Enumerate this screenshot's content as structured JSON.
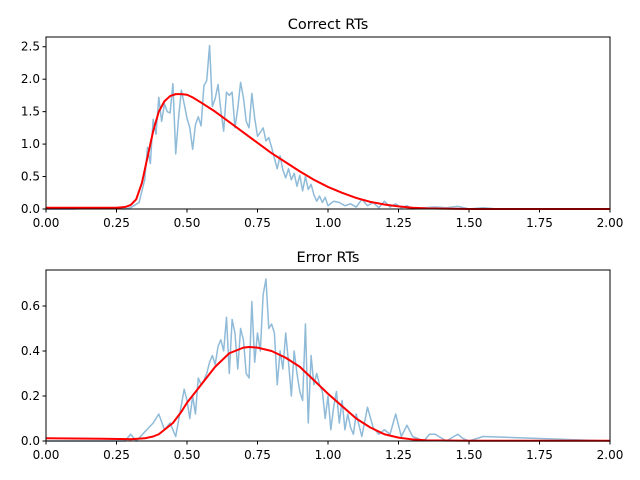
{
  "colors": {
    "histogram": "#1f77b4",
    "model": "#ff0000"
  },
  "chart_data": [
    {
      "type": "line",
      "title": "Correct RTs",
      "xlim": [
        0,
        2
      ],
      "ylim": [
        0,
        2.65
      ],
      "x_ticks": [
        0,
        0.25,
        0.5,
        0.75,
        1.0,
        1.25,
        1.5,
        1.75,
        2.0
      ],
      "x_tick_labels": [
        "0.00",
        "0.25",
        "0.50",
        "0.75",
        "1.00",
        "1.25",
        "1.50",
        "1.75",
        "2.00"
      ],
      "y_ticks": [
        0,
        0.5,
        1.0,
        1.5,
        2.0,
        2.5
      ],
      "y_tick_labels": [
        "0.0",
        "0.5",
        "1.0",
        "1.5",
        "2.0",
        "2.5"
      ],
      "series": [
        {
          "color": "#1f77b4",
          "x": [
            0,
            0.1,
            0.2,
            0.28,
            0.3,
            0.33,
            0.35,
            0.36,
            0.37,
            0.38,
            0.39,
            0.4,
            0.41,
            0.42,
            0.43,
            0.44,
            0.45,
            0.46,
            0.47,
            0.48,
            0.49,
            0.5,
            0.51,
            0.52,
            0.53,
            0.54,
            0.55,
            0.56,
            0.57,
            0.58,
            0.59,
            0.6,
            0.61,
            0.62,
            0.63,
            0.64,
            0.65,
            0.66,
            0.67,
            0.68,
            0.69,
            0.7,
            0.71,
            0.72,
            0.73,
            0.74,
            0.75,
            0.76,
            0.77,
            0.78,
            0.79,
            0.8,
            0.81,
            0.82,
            0.83,
            0.84,
            0.85,
            0.86,
            0.87,
            0.88,
            0.89,
            0.9,
            0.91,
            0.92,
            0.93,
            0.94,
            0.95,
            0.96,
            0.97,
            0.98,
            0.99,
            1.0,
            1.02,
            1.04,
            1.06,
            1.08,
            1.1,
            1.12,
            1.14,
            1.16,
            1.18,
            1.2,
            1.22,
            1.24,
            1.26,
            1.28,
            1.3,
            1.34,
            1.38,
            1.42,
            1.46,
            1.5,
            1.55,
            1.6,
            2.0
          ],
          "values": [
            0,
            0,
            0.02,
            0,
            0.02,
            0.1,
            0.45,
            0.95,
            0.7,
            1.38,
            1.15,
            1.72,
            1.35,
            1.62,
            1.5,
            1.48,
            1.93,
            0.85,
            1.4,
            1.83,
            1.62,
            1.4,
            1.25,
            0.92,
            1.3,
            1.42,
            1.28,
            1.9,
            1.98,
            2.52,
            1.58,
            1.7,
            1.92,
            1.52,
            1.2,
            1.8,
            1.75,
            1.8,
            1.25,
            1.55,
            1.95,
            1.72,
            1.35,
            1.25,
            1.78,
            1.4,
            1.12,
            1.18,
            1.25,
            1.05,
            1.1,
            0.95,
            0.78,
            0.62,
            0.82,
            0.6,
            0.48,
            0.62,
            0.45,
            0.55,
            0.35,
            0.52,
            0.28,
            0.5,
            0.3,
            0.38,
            0.22,
            0.12,
            0.2,
            0.1,
            0.18,
            0.05,
            0.12,
            0.1,
            0.05,
            0.08,
            0.03,
            0.15,
            0.05,
            0.1,
            0.02,
            0.12,
            0.03,
            0.08,
            0.02,
            0.05,
            0,
            0.02,
            0.03,
            0.02,
            0.04,
            0,
            0.02,
            0,
            0
          ]
        },
        {
          "color": "#ff0000",
          "x": [
            0,
            0.25,
            0.28,
            0.3,
            0.32,
            0.34,
            0.36,
            0.38,
            0.4,
            0.42,
            0.44,
            0.46,
            0.48,
            0.5,
            0.52,
            0.55,
            0.6,
            0.65,
            0.7,
            0.75,
            0.8,
            0.85,
            0.9,
            0.95,
            1.0,
            1.05,
            1.1,
            1.15,
            1.2,
            1.25,
            1.3,
            1.35,
            1.4,
            1.5,
            1.6,
            2.0
          ],
          "values": [
            0.02,
            0.02,
            0.03,
            0.06,
            0.15,
            0.4,
            0.8,
            1.2,
            1.5,
            1.66,
            1.74,
            1.77,
            1.77,
            1.76,
            1.72,
            1.64,
            1.5,
            1.34,
            1.18,
            1.02,
            0.86,
            0.72,
            0.58,
            0.45,
            0.34,
            0.25,
            0.17,
            0.11,
            0.07,
            0.04,
            0.02,
            0.01,
            0.005,
            0,
            0,
            0
          ]
        }
      ]
    },
    {
      "type": "line",
      "title": "Error RTs",
      "xlim": [
        0,
        2
      ],
      "ylim": [
        0,
        0.76
      ],
      "x_ticks": [
        0,
        0.25,
        0.5,
        0.75,
        1.0,
        1.25,
        1.5,
        1.75,
        2.0
      ],
      "x_tick_labels": [
        "0.00",
        "0.25",
        "0.50",
        "0.75",
        "1.00",
        "1.25",
        "1.50",
        "1.75",
        "2.00"
      ],
      "y_ticks": [
        0,
        0.2,
        0.4,
        0.6
      ],
      "y_tick_labels": [
        "0.0",
        "0.2",
        "0.4",
        "0.6"
      ],
      "series": [
        {
          "color": "#1f77b4",
          "x": [
            0,
            0.28,
            0.3,
            0.32,
            0.38,
            0.4,
            0.42,
            0.44,
            0.46,
            0.48,
            0.49,
            0.5,
            0.51,
            0.52,
            0.53,
            0.54,
            0.55,
            0.56,
            0.57,
            0.58,
            0.59,
            0.6,
            0.61,
            0.62,
            0.63,
            0.64,
            0.65,
            0.66,
            0.67,
            0.68,
            0.69,
            0.7,
            0.71,
            0.72,
            0.73,
            0.74,
            0.75,
            0.76,
            0.77,
            0.78,
            0.79,
            0.8,
            0.81,
            0.82,
            0.83,
            0.84,
            0.85,
            0.86,
            0.87,
            0.88,
            0.89,
            0.9,
            0.91,
            0.92,
            0.93,
            0.94,
            0.95,
            0.96,
            0.97,
            0.98,
            0.99,
            1.0,
            1.01,
            1.02,
            1.03,
            1.04,
            1.05,
            1.06,
            1.07,
            1.08,
            1.09,
            1.1,
            1.12,
            1.14,
            1.16,
            1.18,
            1.2,
            1.22,
            1.24,
            1.26,
            1.28,
            1.3,
            1.34,
            1.36,
            1.38,
            1.42,
            1.46,
            1.48,
            1.5,
            1.55,
            2.0
          ],
          "values": [
            0,
            0,
            0.03,
            0,
            0.08,
            0.12,
            0.05,
            0.08,
            0.02,
            0.16,
            0.23,
            0.18,
            0.1,
            0.2,
            0.12,
            0.28,
            0.25,
            0.27,
            0.3,
            0.35,
            0.38,
            0.34,
            0.42,
            0.45,
            0.4,
            0.55,
            0.3,
            0.54,
            0.48,
            0.32,
            0.5,
            0.45,
            0.3,
            0.28,
            0.62,
            0.35,
            0.48,
            0.4,
            0.65,
            0.72,
            0.5,
            0.52,
            0.48,
            0.25,
            0.4,
            0.32,
            0.48,
            0.35,
            0.2,
            0.4,
            0.3,
            0.22,
            0.18,
            0.52,
            0.08,
            0.38,
            0.25,
            0.3,
            0.25,
            0.22,
            0.1,
            0.2,
            0.05,
            0.15,
            0.22,
            0.08,
            0.18,
            0.05,
            0.12,
            0.06,
            0.03,
            0.12,
            0.02,
            0.15,
            0.06,
            0.03,
            0.05,
            0.03,
            0.12,
            0.02,
            0.07,
            0.02,
            0.0,
            0.03,
            0.03,
            0.0,
            0.03,
            0.01,
            0.0,
            0.02,
            0
          ]
        },
        {
          "color": "#ff0000",
          "x": [
            0,
            0.2,
            0.3,
            0.35,
            0.38,
            0.4,
            0.42,
            0.45,
            0.48,
            0.5,
            0.55,
            0.6,
            0.65,
            0.7,
            0.72,
            0.75,
            0.8,
            0.85,
            0.9,
            0.95,
            1.0,
            1.05,
            1.1,
            1.15,
            1.2,
            1.25,
            1.3,
            1.35,
            1.4,
            1.5,
            2.0
          ],
          "values": [
            0.012,
            0.01,
            0.008,
            0.012,
            0.02,
            0.03,
            0.05,
            0.08,
            0.13,
            0.17,
            0.25,
            0.33,
            0.39,
            0.415,
            0.418,
            0.415,
            0.4,
            0.37,
            0.33,
            0.27,
            0.21,
            0.155,
            0.1,
            0.06,
            0.03,
            0.015,
            0.007,
            0.003,
            0.002,
            0.001,
            0.001
          ]
        }
      ]
    }
  ]
}
